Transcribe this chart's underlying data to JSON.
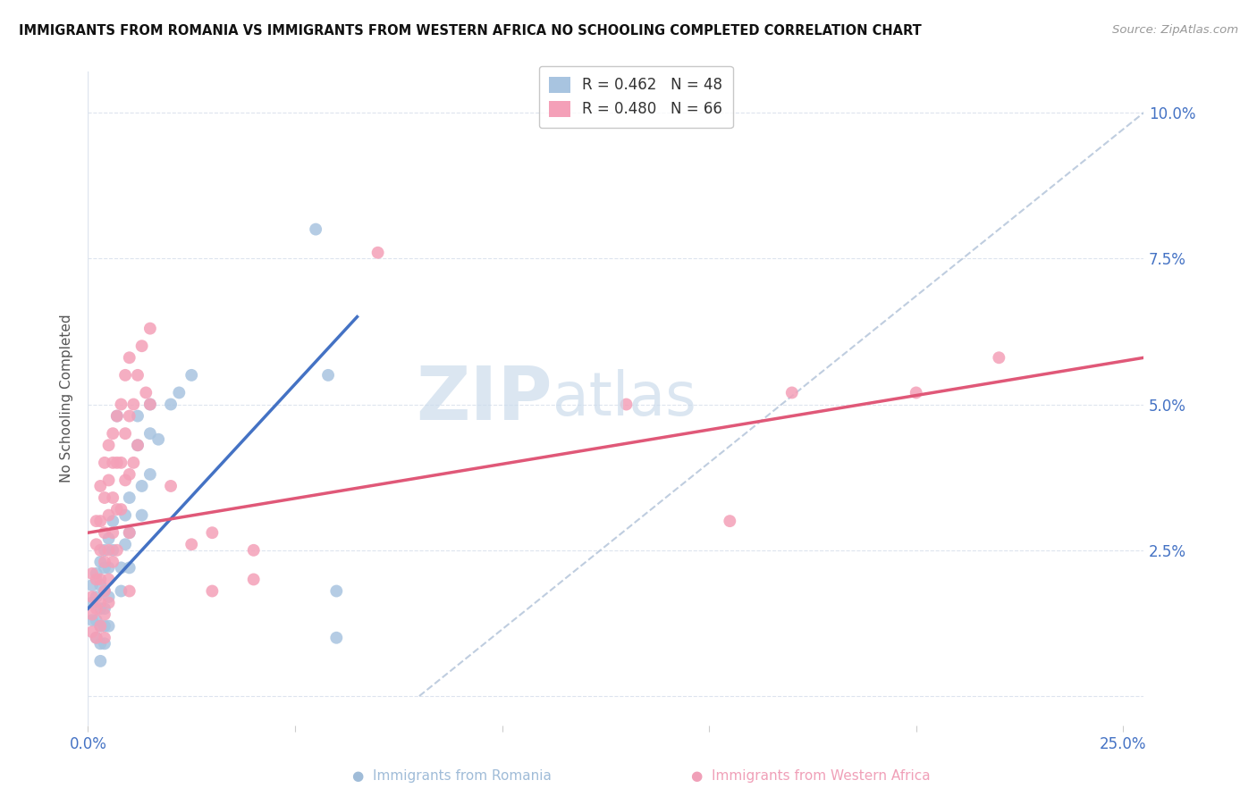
{
  "title": "IMMIGRANTS FROM ROMANIA VS IMMIGRANTS FROM WESTERN AFRICA NO SCHOOLING COMPLETED CORRELATION CHART",
  "source": "Source: ZipAtlas.com",
  "ylabel": "No Schooling Completed",
  "xlim": [
    0.0,
    0.255
  ],
  "ylim": [
    -0.005,
    0.107
  ],
  "xticks": [
    0.0,
    0.05,
    0.1,
    0.15,
    0.2,
    0.25
  ],
  "xticklabels": [
    "0.0%",
    "",
    "",
    "",
    "",
    "25.0%"
  ],
  "yticks": [
    0.0,
    0.025,
    0.05,
    0.075,
    0.1
  ],
  "yticklabels": [
    "",
    "2.5%",
    "5.0%",
    "7.5%",
    "10.0%"
  ],
  "romania_color": "#a8c4e0",
  "africa_color": "#f4a0b8",
  "romania_line_color": "#4472c4",
  "africa_line_color": "#e05878",
  "diagonal_color": "#b8c8dc",
  "watermark_color": "#ccdcec",
  "background_color": "#ffffff",
  "grid_color": "#dde4ee",
  "romania_line_x": [
    0.0,
    0.065
  ],
  "romania_line_y": [
    0.015,
    0.065
  ],
  "africa_line_x": [
    0.0,
    0.255
  ],
  "africa_line_y": [
    0.028,
    0.058
  ],
  "diag_line_x": [
    0.08,
    0.255
  ],
  "diag_line_y": [
    0.0,
    0.1
  ],
  "romania_points": [
    [
      0.001,
      0.019
    ],
    [
      0.001,
      0.016
    ],
    [
      0.001,
      0.013
    ],
    [
      0.002,
      0.021
    ],
    [
      0.002,
      0.017
    ],
    [
      0.002,
      0.013
    ],
    [
      0.002,
      0.01
    ],
    [
      0.003,
      0.023
    ],
    [
      0.003,
      0.019
    ],
    [
      0.003,
      0.015
    ],
    [
      0.003,
      0.012
    ],
    [
      0.003,
      0.009
    ],
    [
      0.003,
      0.006
    ],
    [
      0.004,
      0.025
    ],
    [
      0.004,
      0.022
    ],
    [
      0.004,
      0.018
    ],
    [
      0.004,
      0.015
    ],
    [
      0.004,
      0.012
    ],
    [
      0.004,
      0.009
    ],
    [
      0.005,
      0.027
    ],
    [
      0.005,
      0.022
    ],
    [
      0.005,
      0.017
    ],
    [
      0.005,
      0.012
    ],
    [
      0.006,
      0.03
    ],
    [
      0.006,
      0.025
    ],
    [
      0.007,
      0.048
    ],
    [
      0.008,
      0.022
    ],
    [
      0.008,
      0.018
    ],
    [
      0.009,
      0.031
    ],
    [
      0.009,
      0.026
    ],
    [
      0.01,
      0.034
    ],
    [
      0.01,
      0.028
    ],
    [
      0.01,
      0.022
    ],
    [
      0.012,
      0.048
    ],
    [
      0.012,
      0.043
    ],
    [
      0.013,
      0.036
    ],
    [
      0.013,
      0.031
    ],
    [
      0.015,
      0.05
    ],
    [
      0.015,
      0.045
    ],
    [
      0.015,
      0.038
    ],
    [
      0.017,
      0.044
    ],
    [
      0.02,
      0.05
    ],
    [
      0.022,
      0.052
    ],
    [
      0.025,
      0.055
    ],
    [
      0.055,
      0.08
    ],
    [
      0.058,
      0.055
    ],
    [
      0.06,
      0.018
    ],
    [
      0.06,
      0.01
    ]
  ],
  "africa_points": [
    [
      0.001,
      0.021
    ],
    [
      0.001,
      0.017
    ],
    [
      0.001,
      0.014
    ],
    [
      0.001,
      0.011
    ],
    [
      0.002,
      0.03
    ],
    [
      0.002,
      0.026
    ],
    [
      0.002,
      0.02
    ],
    [
      0.002,
      0.015
    ],
    [
      0.002,
      0.01
    ],
    [
      0.003,
      0.036
    ],
    [
      0.003,
      0.03
    ],
    [
      0.003,
      0.025
    ],
    [
      0.003,
      0.02
    ],
    [
      0.003,
      0.016
    ],
    [
      0.003,
      0.012
    ],
    [
      0.004,
      0.04
    ],
    [
      0.004,
      0.034
    ],
    [
      0.004,
      0.028
    ],
    [
      0.004,
      0.023
    ],
    [
      0.004,
      0.018
    ],
    [
      0.004,
      0.014
    ],
    [
      0.004,
      0.01
    ],
    [
      0.005,
      0.043
    ],
    [
      0.005,
      0.037
    ],
    [
      0.005,
      0.031
    ],
    [
      0.005,
      0.025
    ],
    [
      0.005,
      0.02
    ],
    [
      0.005,
      0.016
    ],
    [
      0.006,
      0.045
    ],
    [
      0.006,
      0.04
    ],
    [
      0.006,
      0.034
    ],
    [
      0.006,
      0.028
    ],
    [
      0.006,
      0.023
    ],
    [
      0.007,
      0.048
    ],
    [
      0.007,
      0.04
    ],
    [
      0.007,
      0.032
    ],
    [
      0.007,
      0.025
    ],
    [
      0.008,
      0.05
    ],
    [
      0.008,
      0.04
    ],
    [
      0.008,
      0.032
    ],
    [
      0.009,
      0.055
    ],
    [
      0.009,
      0.045
    ],
    [
      0.009,
      0.037
    ],
    [
      0.01,
      0.058
    ],
    [
      0.01,
      0.048
    ],
    [
      0.01,
      0.038
    ],
    [
      0.01,
      0.028
    ],
    [
      0.01,
      0.018
    ],
    [
      0.011,
      0.05
    ],
    [
      0.011,
      0.04
    ],
    [
      0.012,
      0.055
    ],
    [
      0.012,
      0.043
    ],
    [
      0.013,
      0.06
    ],
    [
      0.014,
      0.052
    ],
    [
      0.015,
      0.063
    ],
    [
      0.015,
      0.05
    ],
    [
      0.02,
      0.036
    ],
    [
      0.025,
      0.026
    ],
    [
      0.03,
      0.028
    ],
    [
      0.03,
      0.018
    ],
    [
      0.04,
      0.025
    ],
    [
      0.04,
      0.02
    ],
    [
      0.07,
      0.076
    ],
    [
      0.13,
      0.05
    ],
    [
      0.155,
      0.03
    ],
    [
      0.17,
      0.052
    ],
    [
      0.2,
      0.052
    ],
    [
      0.22,
      0.058
    ]
  ]
}
